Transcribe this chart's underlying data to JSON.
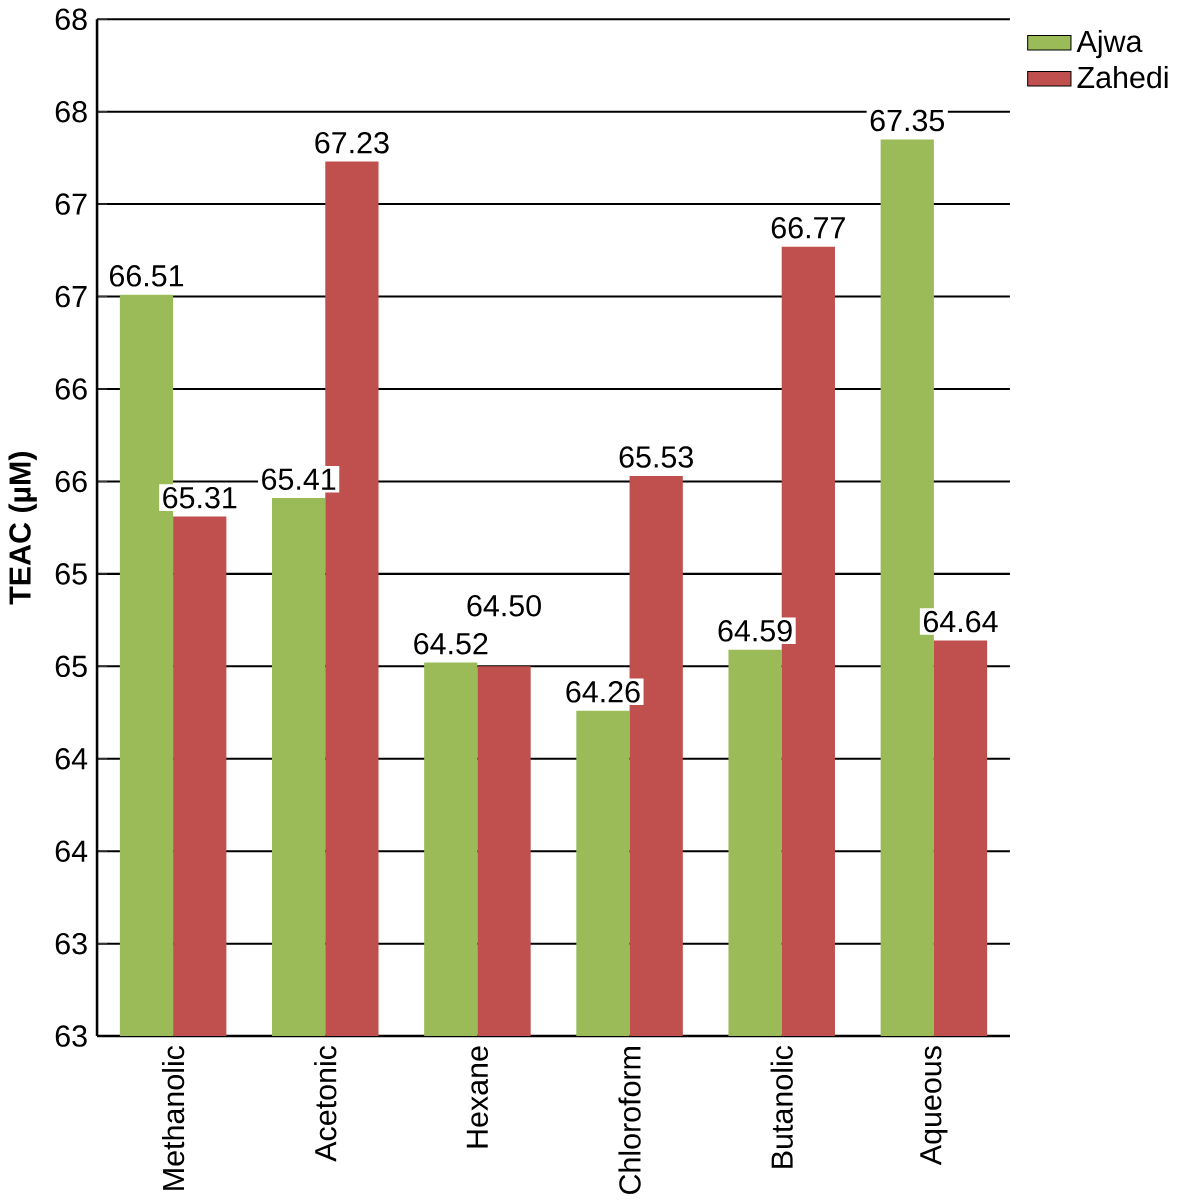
{
  "chart_data": {
    "type": "bar",
    "ylabel": "TEAC (µM)",
    "categories": [
      "Methanolic",
      "Acetonic",
      "Hexane",
      "Chloroform",
      "Butanolic",
      "Aqueous"
    ],
    "series": [
      {
        "name": "Ajwa",
        "color": "#9bbb59",
        "values": [
          66.51,
          65.41,
          64.52,
          64.26,
          64.59,
          67.35
        ],
        "value_labels": [
          "66.51",
          "65.41",
          "64.52",
          "64.26",
          "64.59",
          "67.35"
        ]
      },
      {
        "name": "Zahedi",
        "color": "#c0504d",
        "values": [
          65.31,
          67.23,
          64.5,
          65.53,
          66.77,
          64.64
        ],
        "value_labels": [
          "65.31",
          "67.23",
          "64.50",
          "65.53",
          "66.77",
          "64.64"
        ]
      }
    ],
    "ylim": [
      62.5,
      68
    ],
    "yticks": [
      {
        "value": 62.5,
        "label": "63"
      },
      {
        "value": 63,
        "label": "63"
      },
      {
        "value": 63.5,
        "label": "64"
      },
      {
        "value": 64,
        "label": "64"
      },
      {
        "value": 64.5,
        "label": "65"
      },
      {
        "value": 65,
        "label": "65"
      },
      {
        "value": 65.5,
        "label": "66"
      },
      {
        "value": 66,
        "label": "66"
      },
      {
        "value": 66.5,
        "label": "67"
      },
      {
        "value": 67,
        "label": "67"
      },
      {
        "value": 67.5,
        "label": "68"
      },
      {
        "value": 68,
        "label": "68"
      }
    ],
    "grid": "y",
    "legend": "top right"
  }
}
